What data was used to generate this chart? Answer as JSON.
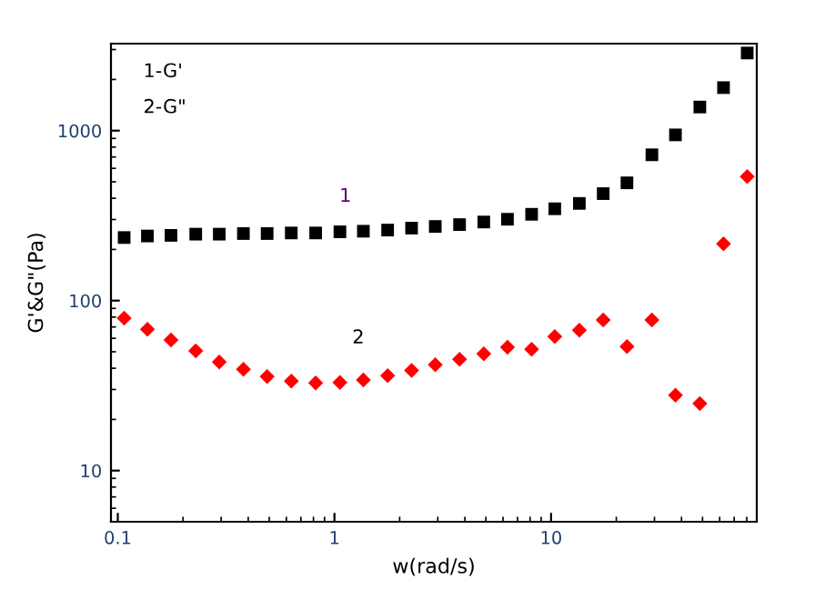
{
  "chart_data": {
    "type": "scatter",
    "xlabel": "w(rad/s)",
    "ylabel": "G'&G\"(Pa)",
    "log": "xy",
    "grid": false,
    "legend": false,
    "xlim": [
      0.093,
      89
    ],
    "ylim": [
      5,
      3250
    ],
    "xticks": [
      0.1,
      1,
      10
    ],
    "yticks": [
      10,
      100,
      1000
    ],
    "x": [
      0.107,
      0.137,
      0.176,
      0.229,
      0.294,
      0.38,
      0.489,
      0.632,
      0.819,
      1.06,
      1.36,
      1.76,
      2.27,
      2.92,
      3.78,
      4.89,
      6.29,
      8.13,
      10.4,
      13.5,
      17.4,
      22.4,
      29.2,
      37.5,
      48.6,
      62.5,
      80.4
    ],
    "series": [
      {
        "color": "#000000",
        "marker": "square",
        "values": [
          235,
          240,
          242,
          246,
          246,
          248,
          248,
          250,
          250,
          254,
          256,
          260,
          267,
          273,
          280,
          290,
          301,
          322,
          347,
          373,
          426,
          493,
          721,
          944,
          1377,
          1791,
          2862
        ]
      },
      {
        "color": "#ff0000",
        "marker": "diamond",
        "values": [
          78.8,
          67.9,
          58.6,
          50.6,
          43.6,
          39.5,
          35.8,
          33.6,
          32.8,
          33.0,
          34.1,
          36.2,
          38.9,
          41.9,
          45.2,
          48.6,
          53.1,
          51.8,
          61.5,
          66.9,
          76.9,
          53.6,
          76.9,
          27.8,
          24.8,
          216,
          537
        ]
      }
    ],
    "annotations": [
      "1-G'",
      "2-G\"",
      "1",
      "2"
    ]
  }
}
